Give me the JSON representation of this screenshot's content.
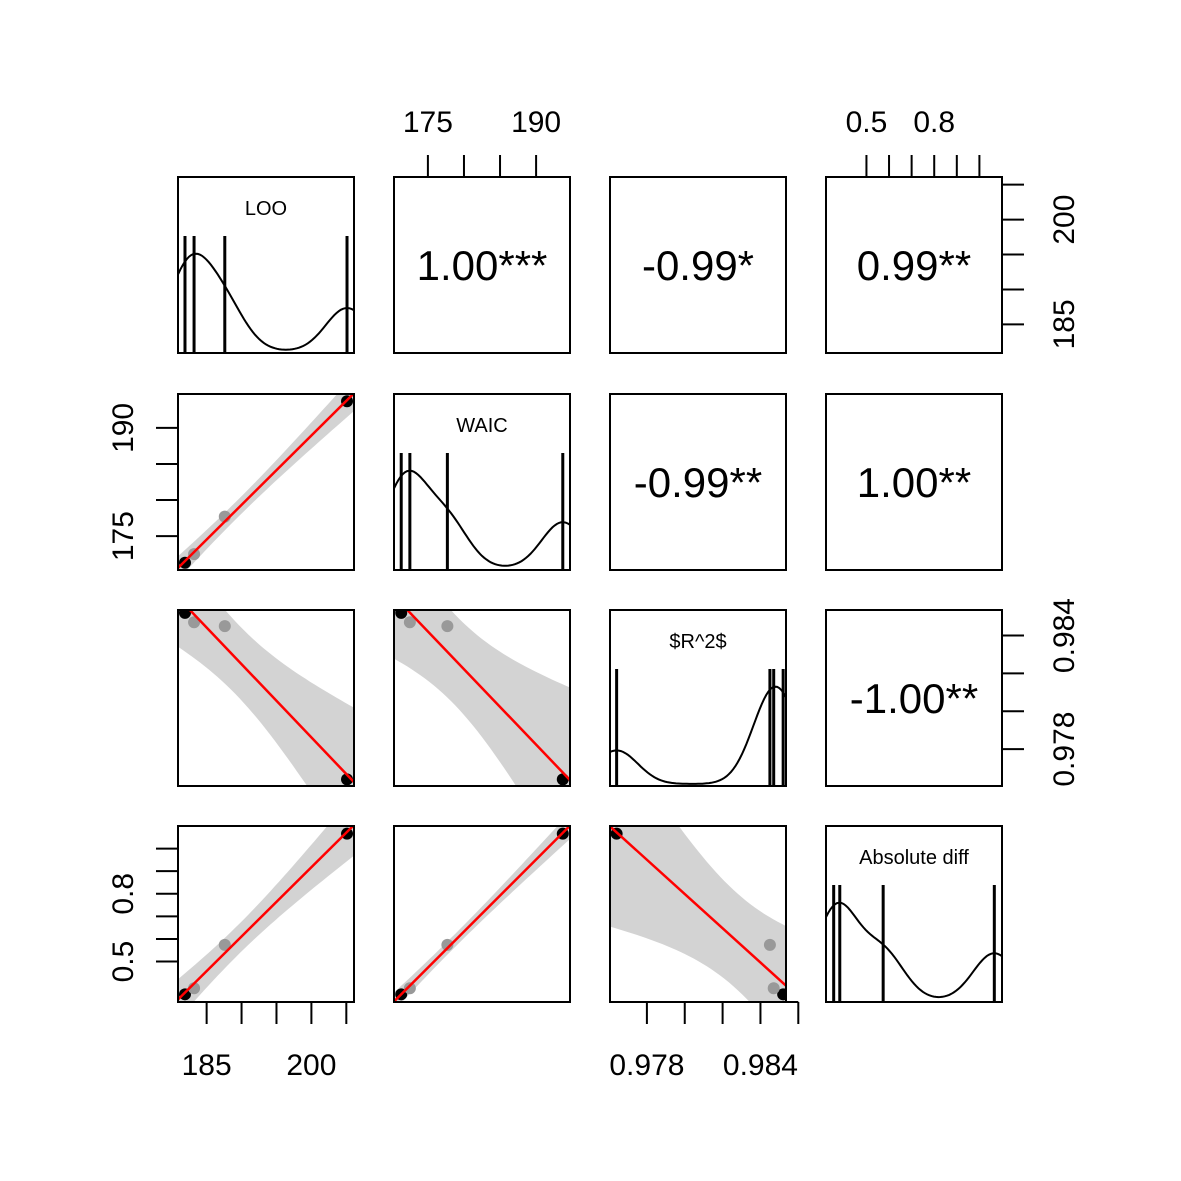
{
  "chart_data": {
    "type": "scatter",
    "variables": [
      "LOO",
      "WAIC",
      "$R^2$",
      "Absolute diff"
    ],
    "points": {
      "LOO": [
        181.9,
        183.2,
        187.6,
        205.1
      ],
      "WAIC": [
        171.3,
        172.5,
        177.7,
        193.7
      ],
      "R2": [
        0.9852,
        0.9847,
        0.9845,
        0.9764
      ],
      "AbsDiff": [
        0.355,
        0.382,
        0.574,
        1.066
      ]
    },
    "correlations": [
      {
        "row": 0,
        "col": 1,
        "label": "1.00***"
      },
      {
        "row": 0,
        "col": 2,
        "label": "-0.99*"
      },
      {
        "row": 0,
        "col": 3,
        "label": "0.99**"
      },
      {
        "row": 1,
        "col": 2,
        "label": "-0.99**"
      },
      {
        "row": 1,
        "col": 3,
        "label": "1.00**"
      },
      {
        "row": 2,
        "col": 3,
        "label": "-1.00**"
      }
    ],
    "axes": {
      "LOO": {
        "ticks": [
          185,
          190,
          195,
          200,
          205
        ],
        "tick_labels": [
          "185",
          "",
          "",
          "200",
          ""
        ]
      },
      "WAIC": {
        "ticks": [
          175,
          180,
          185,
          190
        ],
        "tick_labels": [
          "175",
          "",
          "",
          "190"
        ]
      },
      "R2": {
        "ticks": [
          0.978,
          0.98,
          0.982,
          0.984,
          0.986
        ],
        "tick_labels": [
          "0.978",
          "",
          "",
          "0.984",
          ""
        ]
      },
      "AbsDiff": {
        "ticks": [
          0.5,
          0.6,
          0.7,
          0.8,
          0.9,
          1.0
        ],
        "tick_labels": [
          "0.5",
          "",
          "",
          "0.8",
          "",
          ""
        ]
      }
    },
    "fit_line_color": "#ff0000",
    "ci_band_color": "#d3d3d3",
    "point_color": "#000000",
    "point_color_light": "#999999"
  }
}
